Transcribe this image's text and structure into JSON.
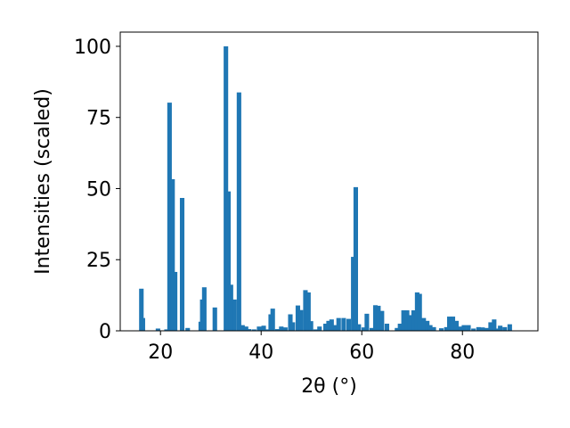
{
  "chart_data": {
    "type": "bar",
    "xlabel": "2θ (°)",
    "ylabel": "Intensities (scaled)",
    "xlim": [
      12,
      95
    ],
    "ylim": [
      0,
      105
    ],
    "x_ticks": [
      20,
      40,
      60,
      80
    ],
    "y_ticks": [
      0,
      25,
      50,
      75,
      100
    ],
    "grid": false,
    "bar_color": "#1f77b4",
    "bar_width": 0.9,
    "points": [
      [
        16.2,
        14.8
      ],
      [
        16.5,
        4.5
      ],
      [
        19.5,
        0.8
      ],
      [
        21.2,
        0.5
      ],
      [
        21.8,
        80.2
      ],
      [
        22.4,
        53.3
      ],
      [
        22.9,
        20.7
      ],
      [
        24.3,
        46.7
      ],
      [
        25.4,
        1.0
      ],
      [
        28.0,
        3.2
      ],
      [
        28.3,
        11.0
      ],
      [
        28.7,
        15.3
      ],
      [
        30.8,
        8.2
      ],
      [
        33.0,
        100.0
      ],
      [
        33.5,
        49.0
      ],
      [
        34.0,
        16.2
      ],
      [
        34.7,
        11.0
      ],
      [
        35.6,
        83.8
      ],
      [
        36.3,
        2.0
      ],
      [
        37.0,
        1.5
      ],
      [
        37.6,
        0.6
      ],
      [
        38.6,
        0.5
      ],
      [
        39.6,
        1.5
      ],
      [
        40.5,
        1.8
      ],
      [
        41.3,
        0.5
      ],
      [
        41.9,
        5.8
      ],
      [
        42.3,
        7.8
      ],
      [
        43.2,
        0.6
      ],
      [
        44.0,
        1.5
      ],
      [
        44.8,
        1.2
      ],
      [
        45.8,
        5.8
      ],
      [
        46.3,
        3.0
      ],
      [
        47.3,
        8.9
      ],
      [
        47.9,
        7.3
      ],
      [
        48.8,
        14.3
      ],
      [
        49.4,
        13.5
      ],
      [
        49.9,
        3.4
      ],
      [
        50.8,
        0.5
      ],
      [
        51.6,
        1.5
      ],
      [
        52.8,
        2.5
      ],
      [
        53.4,
        3.5
      ],
      [
        54.0,
        4.0
      ],
      [
        54.8,
        2.0
      ],
      [
        55.4,
        4.5
      ],
      [
        56.4,
        4.5
      ],
      [
        57.4,
        4.2
      ],
      [
        58.3,
        26.0
      ],
      [
        58.8,
        50.5
      ],
      [
        59.4,
        2.3
      ],
      [
        60.4,
        1.2
      ],
      [
        61.0,
        6.0
      ],
      [
        62.0,
        1.0
      ],
      [
        62.7,
        9.0
      ],
      [
        63.3,
        8.8
      ],
      [
        64.0,
        7.0
      ],
      [
        65.0,
        2.5
      ],
      [
        67.0,
        1.0
      ],
      [
        67.6,
        2.5
      ],
      [
        68.3,
        7.2
      ],
      [
        69.0,
        7.2
      ],
      [
        69.6,
        5.5
      ],
      [
        70.3,
        7.2
      ],
      [
        71.0,
        13.5
      ],
      [
        71.5,
        13.0
      ],
      [
        72.3,
        4.5
      ],
      [
        73.0,
        3.5
      ],
      [
        73.6,
        2.0
      ],
      [
        74.3,
        1.3
      ],
      [
        75.8,
        0.9
      ],
      [
        76.8,
        1.3
      ],
      [
        77.4,
        5.0
      ],
      [
        78.1,
        5.0
      ],
      [
        78.8,
        3.5
      ],
      [
        79.6,
        1.5
      ],
      [
        80.3,
        2.0
      ],
      [
        81.2,
        2.0
      ],
      [
        82.2,
        0.8
      ],
      [
        83.2,
        1.3
      ],
      [
        84.0,
        1.2
      ],
      [
        84.8,
        1.0
      ],
      [
        85.6,
        3.0
      ],
      [
        86.3,
        4.0
      ],
      [
        87.0,
        0.8
      ],
      [
        87.5,
        1.8
      ],
      [
        88.4,
        1.3
      ],
      [
        89.4,
        2.3
      ]
    ]
  }
}
